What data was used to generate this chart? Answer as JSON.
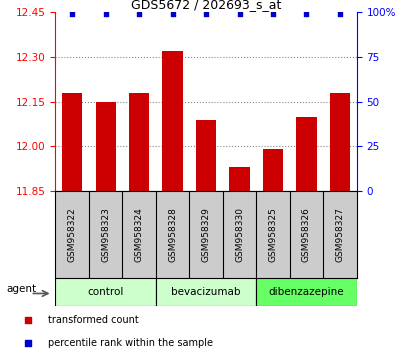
{
  "title": "GDS5672 / 202693_s_at",
  "samples": [
    "GSM958322",
    "GSM958323",
    "GSM958324",
    "GSM958328",
    "GSM958329",
    "GSM958330",
    "GSM958325",
    "GSM958326",
    "GSM958327"
  ],
  "bar_values": [
    12.18,
    12.15,
    12.18,
    12.32,
    12.09,
    11.93,
    11.99,
    12.1,
    12.18
  ],
  "percentile_values": [
    99,
    99,
    99,
    99,
    99,
    99,
    99,
    99,
    99
  ],
  "bar_color": "#cc0000",
  "dot_color": "#0000cc",
  "ylim_left": [
    11.85,
    12.45
  ],
  "ylim_right": [
    0,
    100
  ],
  "yticks_left": [
    11.85,
    12.0,
    12.15,
    12.3,
    12.45
  ],
  "yticks_right": [
    0,
    25,
    50,
    75,
    100
  ],
  "ytick_labels_right": [
    "0",
    "25",
    "50",
    "75",
    "100%"
  ],
  "groups": [
    {
      "label": "control",
      "indices": [
        0,
        1,
        2
      ],
      "color": "#ccffcc"
    },
    {
      "label": "bevacizumab",
      "indices": [
        3,
        4,
        5
      ],
      "color": "#ccffcc"
    },
    {
      "label": "dibenzazepine",
      "indices": [
        6,
        7,
        8
      ],
      "color": "#66ff66"
    }
  ],
  "agent_label": "agent",
  "legend_items": [
    {
      "label": "transformed count",
      "color": "#cc0000"
    },
    {
      "label": "percentile rank within the sample",
      "color": "#0000cc"
    }
  ],
  "background_color": "#ffffff",
  "grid_color": "#888888",
  "xtick_bg": "#cccccc",
  "bar_width": 0.6
}
